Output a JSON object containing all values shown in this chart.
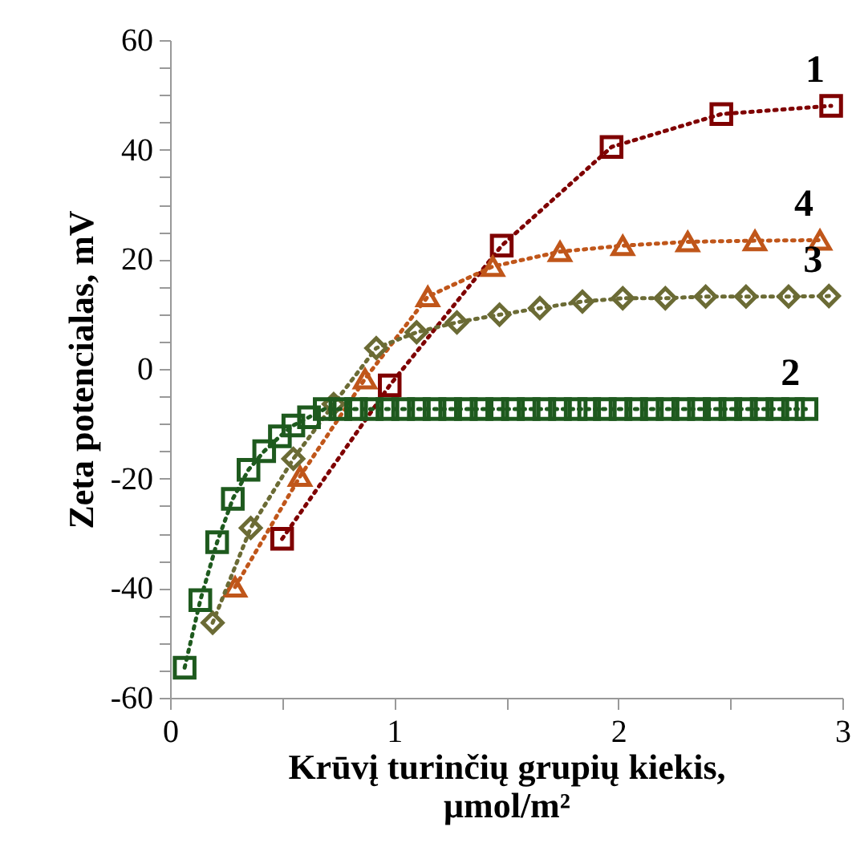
{
  "chart_data": {
    "type": "line",
    "xlabel": "Krūvį turinčių grupių kiekis,\nμmol/m²",
    "ylabel": "Zeta potencialas, mV",
    "xlim": [
      0,
      3
    ],
    "xticks": [
      0,
      {
        "value": 0.5,
        "label": null
      },
      1,
      {
        "value": 1.5,
        "label": null
      },
      2,
      {
        "value": 2.5,
        "label": null
      },
      3
    ],
    "ylim": [
      -60,
      60
    ],
    "yticks": [
      -60,
      {
        "value": -55,
        "label": null
      },
      {
        "value": -50,
        "label": null
      },
      {
        "value": -45,
        "label": null
      },
      -40,
      {
        "value": -35,
        "label": null
      },
      {
        "value": -30,
        "label": null
      },
      {
        "value": -25,
        "label": null
      },
      -20,
      {
        "value": -15,
        "label": null
      },
      {
        "value": -10,
        "label": null
      },
      {
        "value": -5,
        "label": null
      },
      0,
      {
        "value": 5,
        "label": null
      },
      {
        "value": 10,
        "label": null
      },
      {
        "value": 15,
        "label": null
      },
      20,
      {
        "value": 25,
        "label": null
      },
      {
        "value": 30,
        "label": null
      },
      {
        "value": 35,
        "label": null
      },
      40,
      {
        "value": 45,
        "label": null
      },
      {
        "value": 50,
        "label": null
      },
      {
        "value": 55,
        "label": null
      },
      60
    ],
    "grid": false,
    "legend": false,
    "line_style": "dotted",
    "series": [
      {
        "name": "1",
        "color": "#7f0000",
        "marker": "square",
        "x": [
          0.5,
          0.98,
          1.48,
          1.97,
          2.46,
          2.95
        ],
        "values": [
          -31,
          -3,
          22.5,
          40.5,
          46.5,
          48
        ]
      },
      {
        "name": "4",
        "color": "#c0561a",
        "marker": "triangle",
        "x": [
          0.29,
          0.58,
          0.87,
          1.15,
          1.44,
          1.74,
          2.02,
          2.31,
          2.61,
          2.9
        ],
        "values": [
          -39.8,
          -19.6,
          -1.8,
          13.2,
          18.7,
          21.4,
          22.5,
          23.2,
          23.4,
          23.5
        ]
      },
      {
        "name": "3",
        "color": "#6b6b35",
        "marker": "diamond",
        "x": [
          0.19,
          0.36,
          0.55,
          0.73,
          0.92,
          1.1,
          1.28,
          1.47,
          1.65,
          1.84,
          2.02,
          2.21,
          2.39,
          2.57,
          2.76,
          2.94
        ],
        "values": [
          -46.3,
          -29,
          -16.4,
          -6.4,
          3.8,
          6.7,
          8.5,
          9.9,
          11.1,
          12.3,
          12.9,
          12.9,
          13.2,
          13.2,
          13.2,
          13.3
        ]
      },
      {
        "name": "2",
        "color": "#1e5a1e",
        "marker": "square",
        "x": [
          0.065,
          0.135,
          0.21,
          0.28,
          0.35,
          0.42,
          0.49,
          0.55,
          0.62,
          0.69,
          0.76,
          0.83,
          0.9,
          0.97,
          1.04,
          1.11,
          1.18,
          1.25,
          1.32,
          1.39,
          1.46,
          1.53,
          1.6,
          1.67,
          1.74,
          1.81,
          1.87,
          1.94,
          2.01,
          2.08,
          2.15,
          2.22,
          2.29,
          2.36,
          2.43,
          2.5,
          2.57,
          2.64,
          2.71,
          2.78,
          2.84
        ],
        "values": [
          -54.5,
          -42.2,
          -31.6,
          -23.7,
          -18.4,
          -15,
          -12.3,
          -10.3,
          -8.8,
          -7.3,
          -7.3,
          -7.3,
          -7.3,
          -7.3,
          -7.3,
          -7.3,
          -7.3,
          -7.3,
          -7.3,
          -7.3,
          -7.3,
          -7.3,
          -7.3,
          -7.3,
          -7.3,
          -7.3,
          -7.3,
          -7.3,
          -7.3,
          -7.3,
          -7.3,
          -7.3,
          -7.3,
          -7.3,
          -7.3,
          -7.3,
          -7.3,
          -7.3,
          -7.3,
          -7.3,
          -7.3
        ]
      }
    ]
  }
}
